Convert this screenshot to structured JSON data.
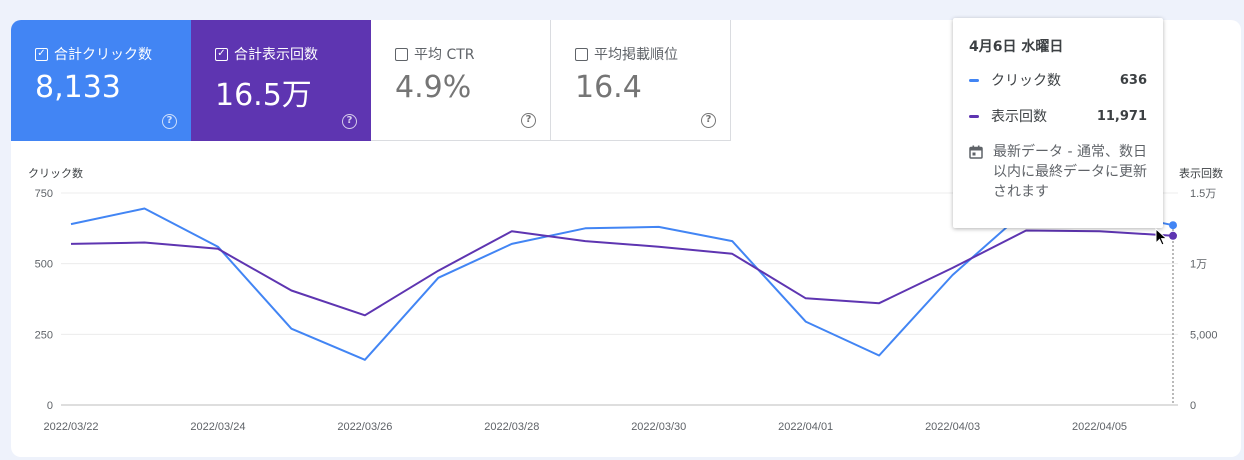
{
  "metrics": [
    {
      "label": "合計クリック数",
      "value": "8,133",
      "checked": true
    },
    {
      "label": "合計表示回数",
      "value": "16.5万",
      "checked": true
    },
    {
      "label": "平均 CTR",
      "value": "4.9%",
      "checked": false
    },
    {
      "label": "平均掲載順位",
      "value": "16.4",
      "checked": false
    }
  ],
  "tooltip": {
    "date": "4月6日 水曜日",
    "rows": [
      {
        "name": "クリック数",
        "value": "636"
      },
      {
        "name": "表示回数",
        "value": "11,971"
      }
    ],
    "note": "最新データ - 通常、数日以内に最終データに更新されます"
  },
  "colors": {
    "clicks": "#4285f4",
    "impressions": "#5e35b1"
  },
  "chart_data": {
    "type": "line",
    "x": [
      "2022/03/22",
      "2022/03/23",
      "2022/03/24",
      "2022/03/25",
      "2022/03/26",
      "2022/03/27",
      "2022/03/28",
      "2022/03/29",
      "2022/03/30",
      "2022/03/31",
      "2022/04/01",
      "2022/04/02",
      "2022/04/03",
      "2022/04/04",
      "2022/04/05",
      "2022/04/06"
    ],
    "x_tick_labels": [
      "2022/03/22",
      "2022/03/24",
      "2022/03/26",
      "2022/03/28",
      "2022/03/30",
      "2022/04/01",
      "2022/04/03",
      "2022/04/05"
    ],
    "y_left": {
      "label": "クリック数",
      "ticks": [
        "0",
        "250",
        "500",
        "750"
      ],
      "range": [
        0,
        750
      ]
    },
    "y_right": {
      "label": "表示回数",
      "ticks": [
        "0",
        "5,000",
        "1万",
        "1.5万"
      ],
      "range": [
        0,
        15000
      ]
    },
    "series": [
      {
        "name": "クリック数",
        "axis": "left",
        "values": [
          640,
          695,
          560,
          270,
          160,
          450,
          570,
          625,
          630,
          580,
          295,
          175,
          460,
          690,
          690,
          636
        ]
      },
      {
        "name": "表示回数",
        "axis": "right",
        "values": [
          11400,
          11500,
          11050,
          8100,
          6350,
          9500,
          12300,
          11600,
          11200,
          10700,
          7550,
          7200,
          9700,
          12350,
          12300,
          11971
        ]
      }
    ],
    "grid": true
  }
}
